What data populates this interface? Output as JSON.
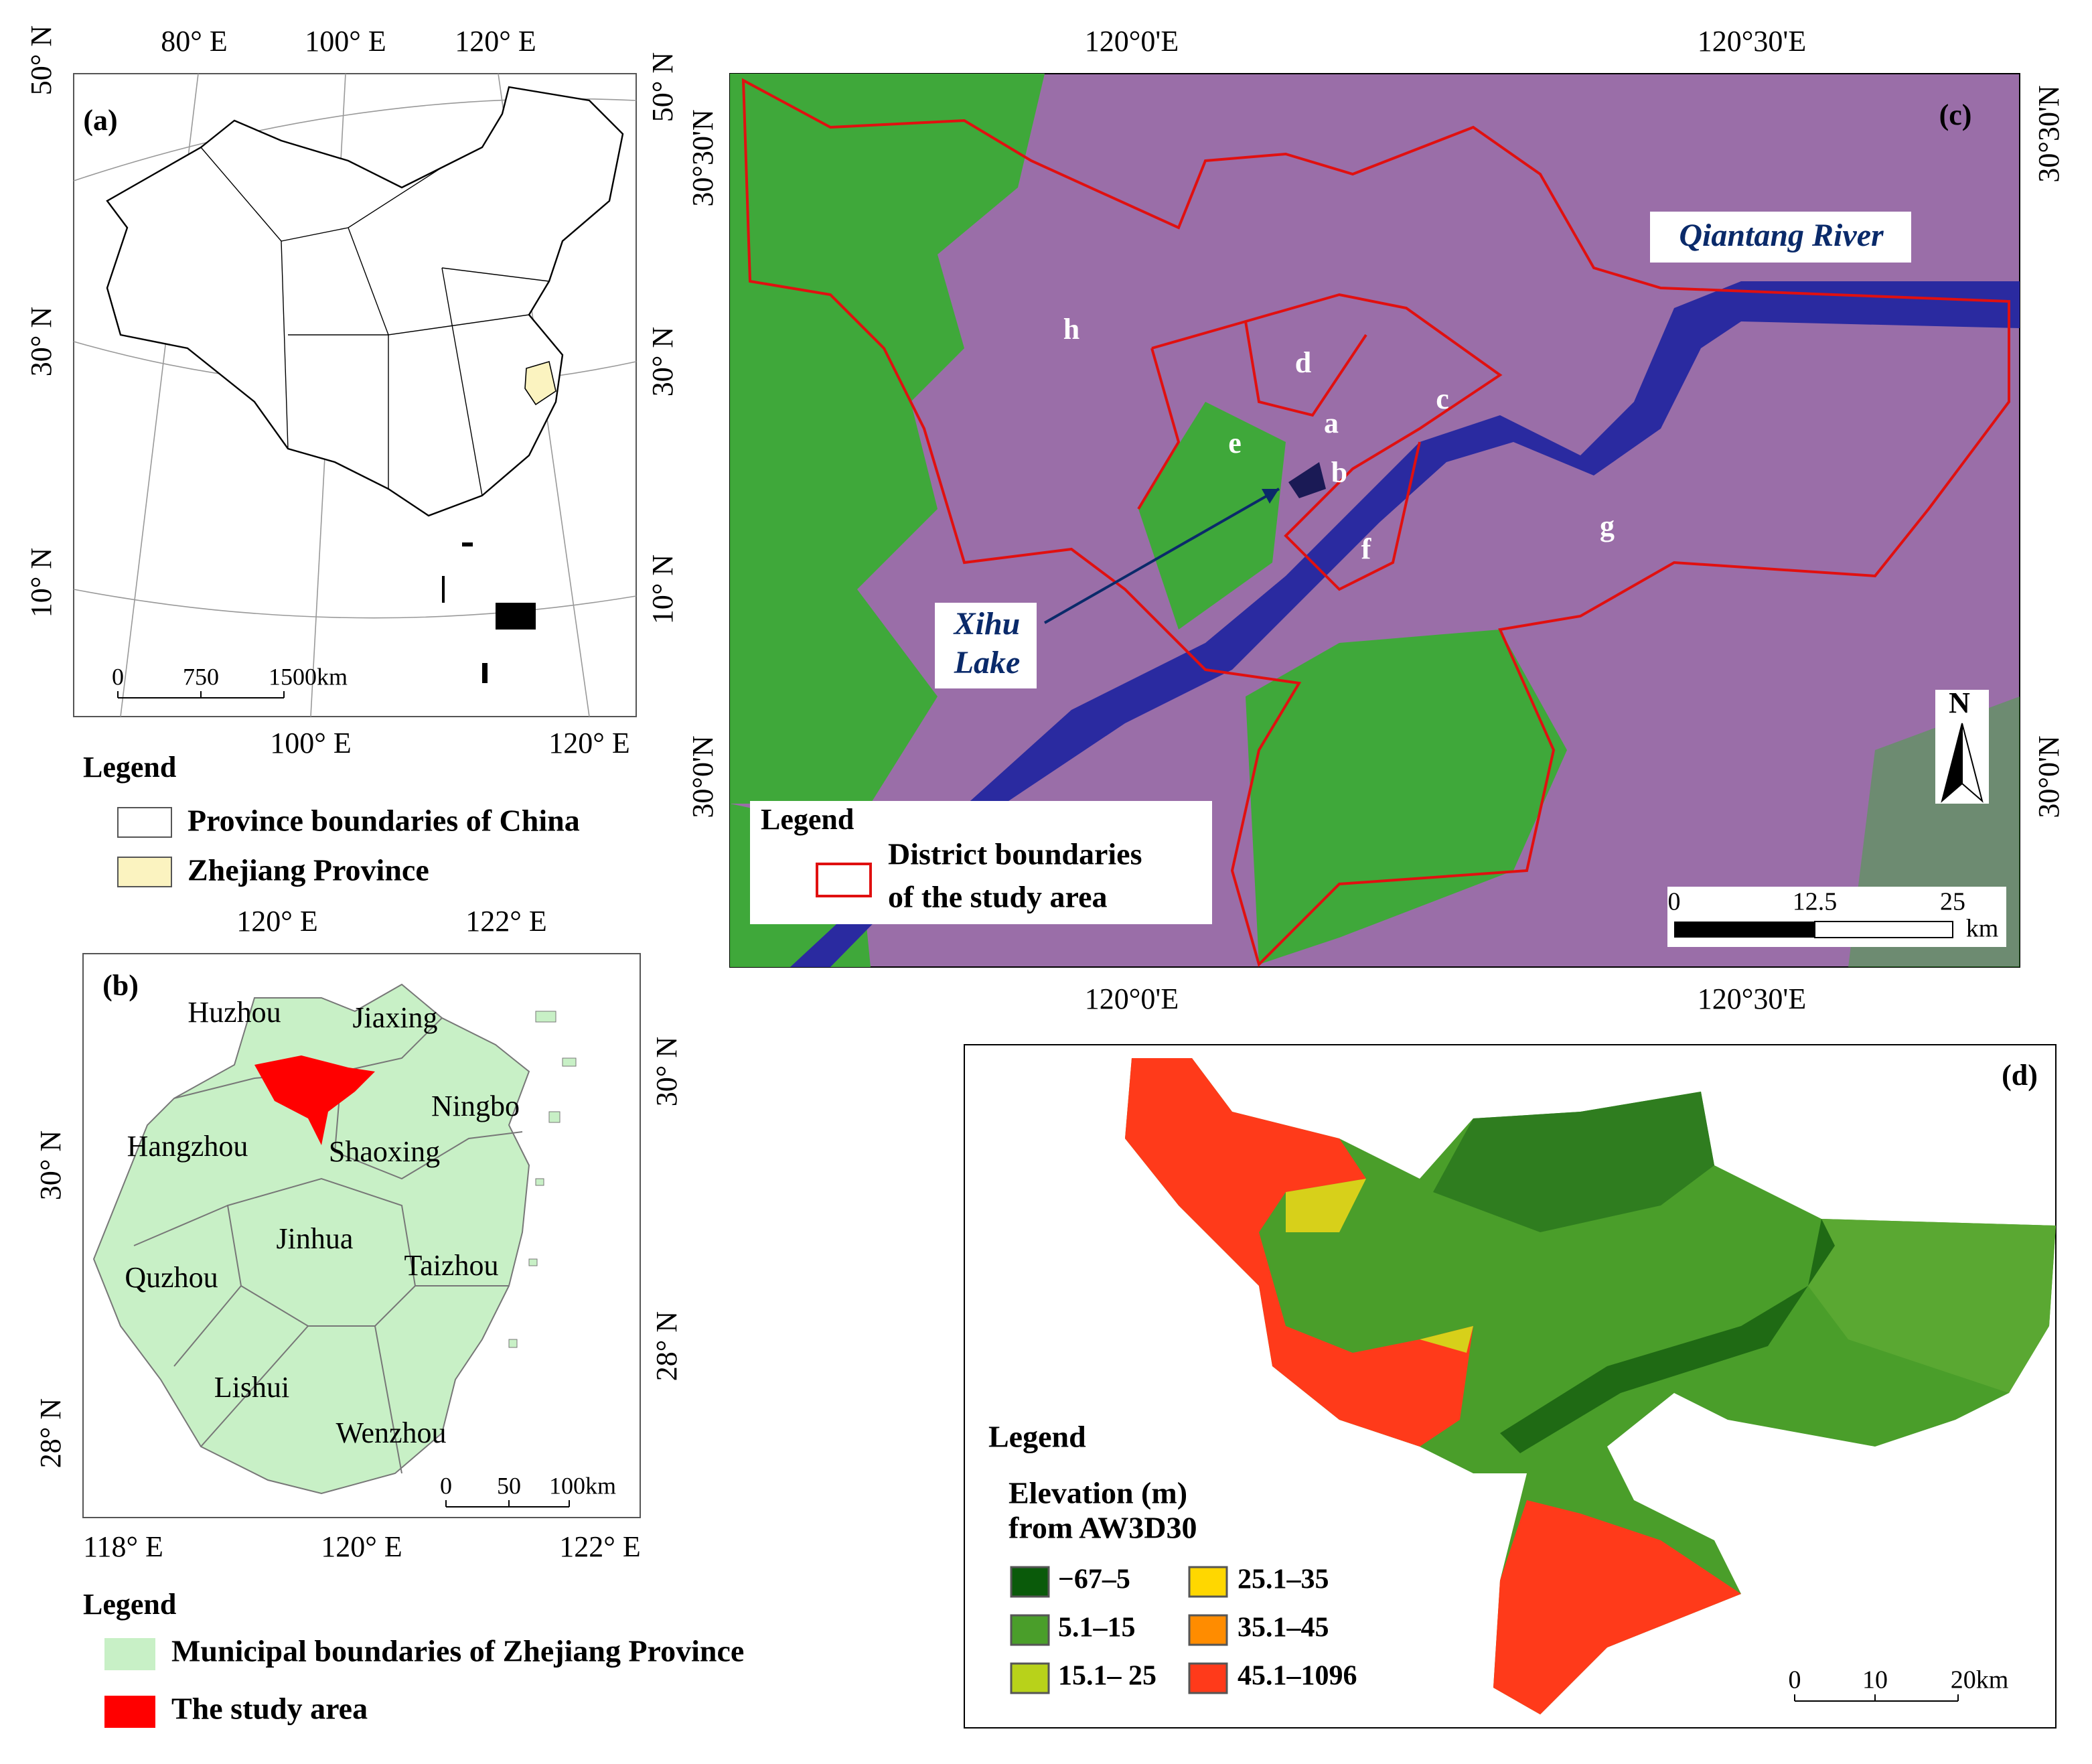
{
  "a": {
    "label": "(a)",
    "top_lon": [
      "80° E",
      "100° E",
      "120° E"
    ],
    "bottom_lon": [
      "100° E",
      "120° E"
    ],
    "left_lat": [
      "50° N",
      "30° N",
      "10° N"
    ],
    "right_lat": [
      "50° N",
      "30° N",
      "10° N"
    ],
    "scale": [
      "0",
      "750",
      "1500km"
    ],
    "legend_title": "Legend",
    "legend": [
      "Province boundaries of China",
      "Zhejiang Province"
    ]
  },
  "b": {
    "label": "(b)",
    "top_lon": [
      "120° E",
      "122° E"
    ],
    "bottom_lon": [
      "118° E",
      "120° E",
      "122° E"
    ],
    "left_lat": [
      "30° N",
      "28° N"
    ],
    "right_lat": [
      "30° N",
      "28° N"
    ],
    "cities": [
      "Huzhou",
      "Jiaxing",
      "Ningbo",
      "Hangzhou",
      "Shaoxing",
      "Jinhua",
      "Taizhou",
      "Quzhou",
      "Lishui",
      "Wenzhou"
    ],
    "scale": [
      "0",
      "50",
      "100km"
    ],
    "legend_title": "Legend",
    "legend": [
      "Municipal boundaries of Zhejiang Province",
      "The study area"
    ]
  },
  "c": {
    "label": "(c)",
    "top_lon": [
      "120°0'E",
      "120°30'E"
    ],
    "bottom_lon": [
      "120°0'E",
      "120°30'E"
    ],
    "left_lat": [
      "30°30'N",
      "30°0'N"
    ],
    "right_lat": [
      "30°30'N",
      "30°0'N"
    ],
    "districts": [
      "h",
      "d",
      "c",
      "a",
      "e",
      "b",
      "f",
      "g"
    ],
    "river": "Qiantang River",
    "lake": [
      "Xihu",
      "Lake"
    ],
    "north": "N",
    "legend_title": "Legend",
    "legend": [
      "District boundaries",
      "of the study area"
    ],
    "scale": [
      "0",
      "12.5",
      "25"
    ],
    "scale_unit": "km"
  },
  "d": {
    "label": "(d)",
    "legend_title": "Legend",
    "elevation_title": [
      "Elevation (m)",
      "from AW3D30"
    ],
    "classes": [
      "−67–5",
      "5.1–15",
      "15.1– 25",
      "25.1–35",
      "35.1–45",
      "45.1–1096"
    ],
    "scale": [
      "0",
      "10",
      "20km"
    ]
  }
}
